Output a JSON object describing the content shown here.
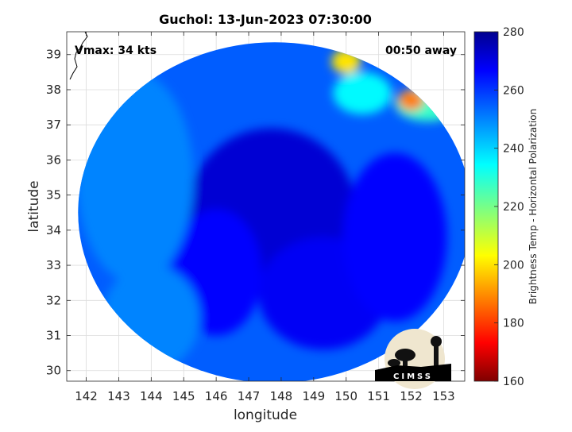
{
  "chart_data": {
    "type": "heatmap",
    "title": "Guchol: 13-Jun-2023 07:30:00",
    "xlabel": "longitude",
    "ylabel": "latitude",
    "xlim": [
      141.4,
      153.65
    ],
    "ylim": [
      29.7,
      39.65
    ],
    "x_ticks": [
      142,
      143,
      144,
      145,
      146,
      147,
      148,
      149,
      150,
      151,
      152,
      153
    ],
    "y_ticks": [
      30,
      31,
      32,
      33,
      34,
      35,
      36,
      37,
      38,
      39
    ],
    "grid": true,
    "annotations": {
      "top_left": "Vmax: 34 kts",
      "top_right": "00:50 away"
    },
    "colorbar": {
      "label": "Brightness Temp - Horizontal Polarization",
      "range": [
        160,
        280
      ],
      "ticks": [
        160,
        180,
        200,
        220,
        240,
        260,
        280
      ],
      "colormap": "jet"
    },
    "field": {
      "swath_center_lon": 147.8,
      "swath_center_lat": 34.5,
      "swath_lon_radius": 6.05,
      "swath_lat_radius": 4.85,
      "background_value": 255,
      "blobs": [
        {
          "lon": 147.7,
          "lat": 34.5,
          "value": 272,
          "rlon": 2.6,
          "rlat": 2.4
        },
        {
          "lon": 149.3,
          "lat": 32.2,
          "value": 268,
          "rlon": 2.0,
          "rlat": 1.6
        },
        {
          "lon": 146.0,
          "lat": 32.8,
          "value": 266,
          "rlon": 1.4,
          "rlat": 1.8
        },
        {
          "lon": 151.5,
          "lat": 33.8,
          "value": 266,
          "rlon": 1.6,
          "rlat": 2.4
        },
        {
          "lon": 143.5,
          "lat": 35.5,
          "value": 250,
          "rlon": 1.8,
          "rlat": 3.0
        },
        {
          "lon": 144.0,
          "lat": 31.5,
          "value": 250,
          "rlon": 1.5,
          "rlat": 1.5
        },
        {
          "lon": 150.5,
          "lat": 37.9,
          "value": 235,
          "rlon": 0.9,
          "rlat": 0.6
        },
        {
          "lon": 152.5,
          "lat": 37.6,
          "value": 228,
          "rlon": 1.0,
          "rlat": 0.5
        },
        {
          "lon": 150.0,
          "lat": 38.8,
          "value": 200,
          "rlon": 0.45,
          "rlat": 0.35
        },
        {
          "lon": 152.0,
          "lat": 37.7,
          "value": 188,
          "rlon": 0.4,
          "rlat": 0.3
        }
      ]
    }
  },
  "logo": {
    "text": "CIMSS"
  }
}
